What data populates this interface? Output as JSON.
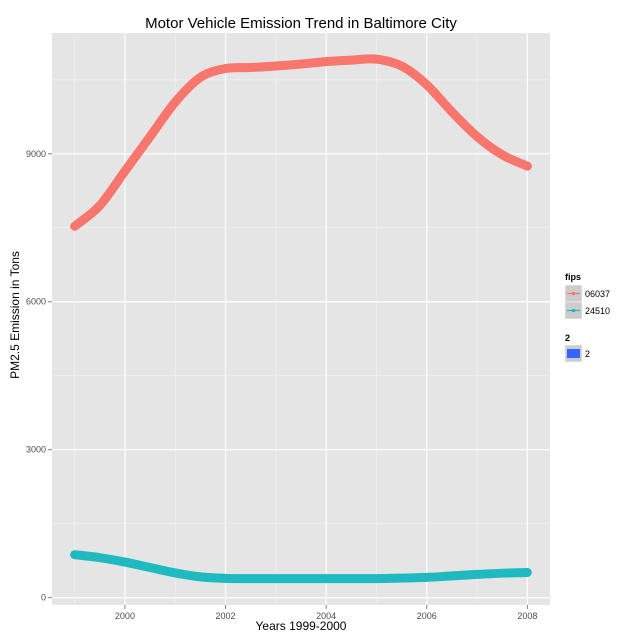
{
  "chart_data": {
    "type": "line",
    "title": "Motor Vehicle Emission Trend in Baltimore City",
    "xlabel": "Years 1999-2000",
    "ylabel": "PM2.5 Emission in Tons",
    "xlim": [
      1998.55,
      2008.45
    ],
    "ylim": [
      -150,
      11450
    ],
    "x_ticks": [
      2000,
      2002,
      2004,
      2006,
      2008
    ],
    "y_ticks": [
      0,
      3000,
      6000,
      9000
    ],
    "grid": true,
    "legend_position": "right",
    "series": [
      {
        "name": "06037",
        "color": "#F8766D",
        "x": [
          1999,
          1999.5,
          2000,
          2000.5,
          2001,
          2001.5,
          2002,
          2002.5,
          2003,
          2003.5,
          2004,
          2004.5,
          2005,
          2005.5,
          2006,
          2006.5,
          2007,
          2007.5,
          2008
        ],
        "values": [
          7530,
          7950,
          8650,
          9350,
          10050,
          10550,
          10730,
          10750,
          10780,
          10820,
          10870,
          10900,
          10920,
          10780,
          10400,
          9850,
          9350,
          8980,
          8750
        ]
      },
      {
        "name": "24510",
        "color": "#1FBABF",
        "x": [
          1999,
          1999.5,
          2000,
          2000.5,
          2001,
          2001.5,
          2002,
          2002.5,
          2003,
          2003.5,
          2004,
          2004.5,
          2005,
          2005.5,
          2006,
          2006.5,
          2007,
          2007.5,
          2008
        ],
        "values": [
          870,
          810,
          720,
          610,
          500,
          420,
          390,
          385,
          385,
          385,
          385,
          385,
          385,
          395,
          410,
          440,
          470,
          495,
          510
        ]
      }
    ],
    "legends": [
      {
        "title": "fips",
        "entries": [
          "06037",
          "24510"
        ]
      },
      {
        "title": "2",
        "entries": [
          "2"
        ],
        "fill": "#3366FF"
      }
    ]
  }
}
